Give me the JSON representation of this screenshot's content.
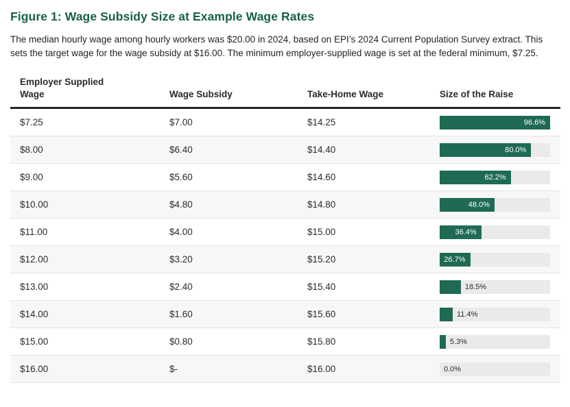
{
  "figure": {
    "title": "Figure 1: Wage Subsidy Size at Example Wage Rates",
    "description": "The median hourly wage among hourly workers was $20.00 in 2024, based on EPI’s 2024 Current Population Survey extract. This sets the target wage for the wage subsidy at $16.00. The minimum employer-supplied wage is set at the federal minimum, $7.25."
  },
  "table": {
    "columns": [
      "Employer Supplied Wage",
      "Wage Subsidy",
      "Take-Home Wage",
      "Size of the Raise"
    ],
    "rows": [
      {
        "employer_wage": "$7.25",
        "wage_subsidy": "$7.00",
        "take_home": "$14.25",
        "raise_pct": 96.6,
        "raise_label": "96.6%"
      },
      {
        "employer_wage": "$8.00",
        "wage_subsidy": "$6.40",
        "take_home": "$14.40",
        "raise_pct": 80.0,
        "raise_label": "80.0%"
      },
      {
        "employer_wage": "$9.00",
        "wage_subsidy": "$5.60",
        "take_home": "$14.60",
        "raise_pct": 62.2,
        "raise_label": "62.2%"
      },
      {
        "employer_wage": "$10.00",
        "wage_subsidy": "$4.80",
        "take_home": "$14.80",
        "raise_pct": 48.0,
        "raise_label": "48.0%"
      },
      {
        "employer_wage": "$11.00",
        "wage_subsidy": "$4.00",
        "take_home": "$15.00",
        "raise_pct": 36.4,
        "raise_label": "36.4%"
      },
      {
        "employer_wage": "$12.00",
        "wage_subsidy": "$3.20",
        "take_home": "$15.20",
        "raise_pct": 26.7,
        "raise_label": "26.7%"
      },
      {
        "employer_wage": "$13.00",
        "wage_subsidy": "$2.40",
        "take_home": "$15.40",
        "raise_pct": 18.5,
        "raise_label": "18.5%"
      },
      {
        "employer_wage": "$14.00",
        "wage_subsidy": "$1.60",
        "take_home": "$15.60",
        "raise_pct": 11.4,
        "raise_label": "11.4%"
      },
      {
        "employer_wage": "$15.00",
        "wage_subsidy": "$0.80",
        "take_home": "$15.80",
        "raise_pct": 5.3,
        "raise_label": "5.3%"
      },
      {
        "employer_wage": "$16.00",
        "wage_subsidy": "$-",
        "take_home": "$16.00",
        "raise_pct": 0.0,
        "raise_label": "0.0%"
      }
    ]
  },
  "chart_data": {
    "type": "table",
    "title": "Figure 1: Wage Subsidy Size at Example Wage Rates",
    "columns": [
      "Employer Supplied Wage",
      "Wage Subsidy",
      "Take-Home Wage",
      "Size of the Raise"
    ],
    "categories": [
      "$7.25",
      "$8.00",
      "$9.00",
      "$10.00",
      "$11.00",
      "$12.00",
      "$13.00",
      "$14.00",
      "$15.00",
      "$16.00"
    ],
    "series": [
      {
        "name": "Wage Subsidy ($)",
        "values": [
          7.0,
          6.4,
          5.6,
          4.8,
          4.0,
          3.2,
          2.4,
          1.6,
          0.8,
          0.0
        ]
      },
      {
        "name": "Take-Home Wage ($)",
        "values": [
          14.25,
          14.4,
          14.6,
          14.8,
          15.0,
          15.2,
          15.4,
          15.6,
          15.8,
          16.0
        ]
      },
      {
        "name": "Size of the Raise (%)",
        "values": [
          96.6,
          80.0,
          62.2,
          48.0,
          36.4,
          26.7,
          18.5,
          11.4,
          5.3,
          0.0
        ]
      }
    ],
    "embedded_bar_column": "Size of the Raise",
    "bar_axis_max_pct": 96.6,
    "bar_color": "#1e6a55",
    "bar_track_color": "#eaeaea",
    "title_color": "#17604b",
    "legend_position": "none",
    "grid": false
  },
  "colors": {
    "title_green": "#17604b",
    "bar_green": "#1e6a55",
    "bar_track": "#eaeaea",
    "alt_row_bg": "#f7f7f7",
    "header_rule": "#262626",
    "row_rule": "#e4e4e4",
    "text": "#231f20"
  }
}
